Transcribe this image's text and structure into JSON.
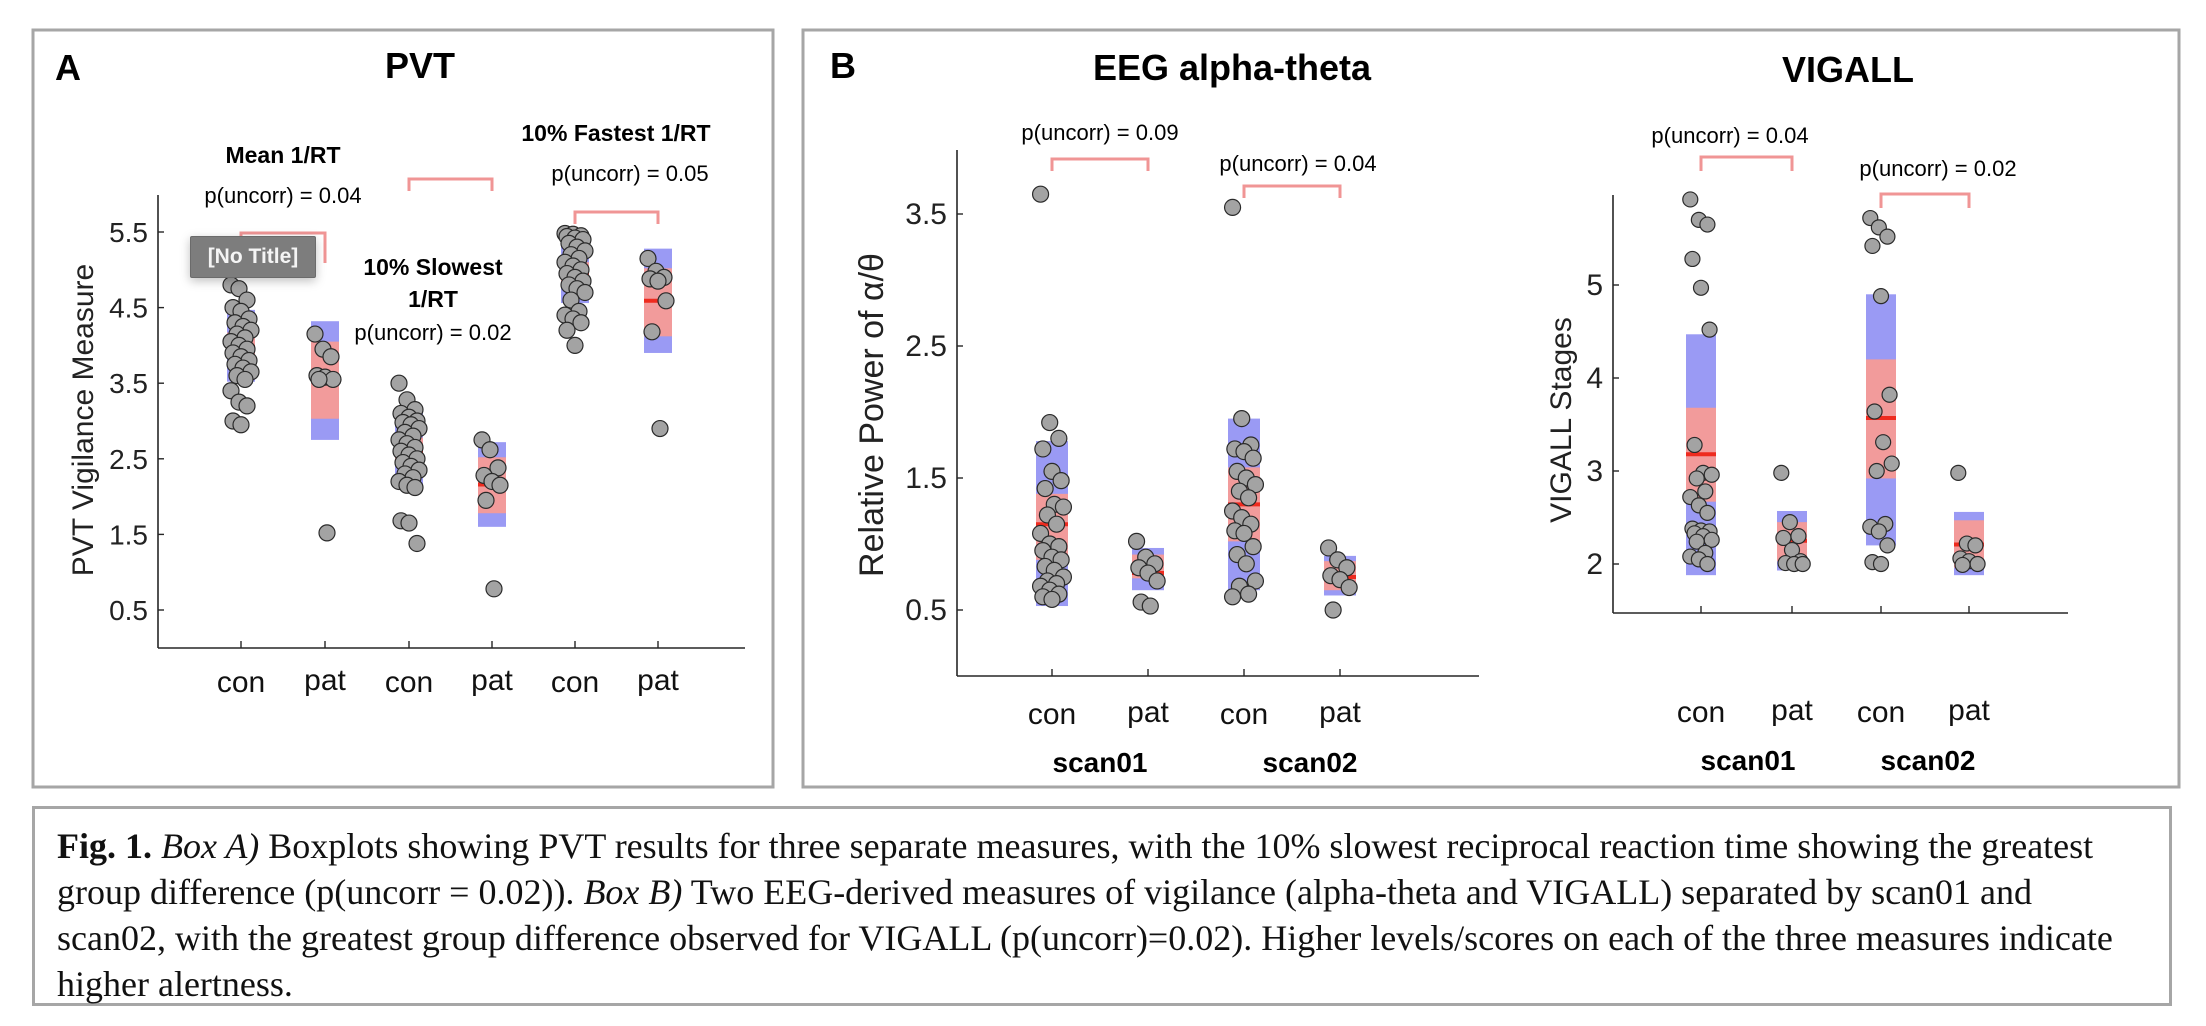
{
  "panel_a": {
    "letter": "A",
    "title": "PVT",
    "ylabel": "PVT Vigilance Measure",
    "tooltip": "[No Title]"
  },
  "panel_b": {
    "letter": "B",
    "scan_labels": [
      "scan01",
      "scan02"
    ]
  },
  "caption": {
    "fig_label": "Fig. 1.",
    "box_a_label": "Box A)",
    "box_a_text": " Boxplots showing PVT results for three separate measures, with the 10% slowest reciprocal reaction time showing the greatest group difference (p(uncorr = 0.02)). ",
    "box_b_label": "Box B)",
    "box_b_text": " Two EEG-derived measures of vigilance (alpha-theta and VIGALL) separated by scan01 and scan02, with the greatest group difference observed for VIGALL (p(uncorr)=0.02). Higher levels/scores on each of the three measures indicate higher alertness."
  },
  "colors": {
    "sd_band": "#9a9af4",
    "ci_band": "#f29b9b",
    "median": "#ee2b1f",
    "point_fill": "#a3a3a3",
    "bracket": "#f09595",
    "frame": "#a6a6a6"
  },
  "chart_data": [
    {
      "id": "pvt",
      "type": "box-scatter",
      "title": "PVT",
      "ylabel": "PVT Vigilance Measure",
      "xlabel": "",
      "ylim": [
        0,
        5.7
      ],
      "yticks": [
        0.5,
        1.5,
        2.5,
        3.5,
        4.5,
        5.5
      ],
      "categories": [
        "con",
        "pat",
        "con",
        "pat",
        "con",
        "pat"
      ],
      "comparisons": [
        {
          "group_label": "Mean 1/RT",
          "p_label": "p(uncorr) = 0.04",
          "pair": [
            0,
            1
          ],
          "bracket_y": 5.6
        },
        {
          "group_label": "10% Slowest\n1/RT",
          "p_label": "p(uncorr) = 0.02",
          "pair": [
            2,
            3
          ],
          "bracket_y": 3.9
        },
        {
          "group_label": "10% Fastest 1/RT",
          "p_label": "p(uncorr) = 0.05",
          "pair": [
            4,
            5
          ],
          "bracket_y": 5.9
        }
      ],
      "groups": [
        {
          "label": "con",
          "band_outer": [
            3.52,
            4.47
          ],
          "band_inner": [
            3.82,
            4.17
          ],
          "median": 3.98,
          "points": [
            4.8,
            4.75,
            4.6,
            4.5,
            4.45,
            4.35,
            4.3,
            4.25,
            4.2,
            4.15,
            4.1,
            4.05,
            4.0,
            3.95,
            3.9,
            3.85,
            3.8,
            3.75,
            3.7,
            3.65,
            3.6,
            3.55,
            3.4,
            3.25,
            3.2,
            3.0,
            2.95
          ]
        },
        {
          "label": "pat",
          "band_outer": [
            2.75,
            4.32
          ],
          "band_inner": [
            3.03,
            4.05
          ],
          "median": 3.55,
          "points": [
            4.15,
            3.95,
            3.85,
            3.6,
            3.58,
            3.55,
            3.55,
            1.52
          ]
        },
        {
          "label": "con",
          "band_outer": [
            2.12,
            3.12
          ],
          "band_inner": [
            2.45,
            2.78
          ],
          "median": 2.6,
          "points": [
            3.5,
            3.28,
            3.15,
            3.1,
            3.05,
            3.0,
            2.98,
            2.95,
            2.9,
            2.85,
            2.8,
            2.75,
            2.7,
            2.65,
            2.6,
            2.55,
            2.5,
            2.45,
            2.4,
            2.35,
            2.3,
            2.25,
            2.2,
            2.15,
            2.12,
            1.68,
            1.65,
            1.38
          ]
        },
        {
          "label": "pat",
          "band_outer": [
            1.6,
            2.72
          ],
          "band_inner": [
            1.78,
            2.52
          ],
          "median": 2.16,
          "points": [
            2.75,
            2.62,
            2.38,
            2.28,
            2.2,
            2.15,
            1.95,
            0.78
          ]
        },
        {
          "label": "con",
          "band_outer": [
            4.56,
            5.38
          ],
          "band_inner": [
            4.82,
            5.1
          ],
          "median": 4.96,
          "points": [
            5.48,
            5.47,
            5.45,
            5.44,
            5.42,
            5.4,
            5.35,
            5.3,
            5.25,
            5.2,
            5.15,
            5.1,
            5.05,
            5.0,
            4.95,
            4.9,
            4.85,
            4.8,
            4.75,
            4.7,
            4.6,
            4.45,
            4.4,
            4.35,
            4.3,
            4.2,
            4.0
          ]
        },
        {
          "label": "pat",
          "band_outer": [
            3.9,
            5.28
          ],
          "band_inner": [
            4.12,
            5.02
          ],
          "median": 4.59,
          "points": [
            5.15,
            4.98,
            4.9,
            4.88,
            4.85,
            4.59,
            4.18,
            2.9
          ]
        }
      ]
    },
    {
      "id": "eeg",
      "type": "box-scatter",
      "title": "EEG alpha-theta",
      "ylabel": "Relative Power of α/θ",
      "xlabel": "",
      "ylim": [
        0,
        4
      ],
      "yticks": [
        0.5,
        1.5,
        2.5,
        3.5
      ],
      "categories": [
        "con",
        "pat",
        "con",
        "pat"
      ],
      "group_labels": [
        "scan01",
        "scan02"
      ],
      "comparisons": [
        {
          "p_label": "p(uncorr) = 0.09",
          "pair": [
            0,
            1
          ],
          "bracket_y": 4.25
        },
        {
          "p_label": "p(uncorr) = 0.04",
          "pair": [
            2,
            3
          ],
          "bracket_y": 4.1
        }
      ],
      "groups": [
        {
          "label": "con",
          "band_outer": [
            0.53,
            1.78
          ],
          "band_inner": [
            0.88,
            1.38
          ],
          "median": 1.15,
          "points": [
            3.65,
            1.92,
            1.8,
            1.72,
            1.55,
            1.48,
            1.42,
            1.3,
            1.28,
            1.22,
            1.15,
            1.08,
            1.0,
            0.98,
            0.95,
            0.9,
            0.88,
            0.83,
            0.8,
            0.75,
            0.72,
            0.7,
            0.68,
            0.65,
            0.62,
            0.6,
            0.58
          ]
        },
        {
          "label": "pat",
          "band_outer": [
            0.65,
            0.97
          ],
          "band_inner": [
            0.74,
            0.92
          ],
          "median": 0.78,
          "points": [
            1.02,
            0.9,
            0.85,
            0.82,
            0.78,
            0.72,
            0.56,
            0.53
          ]
        },
        {
          "label": "con",
          "band_outer": [
            0.65,
            1.95
          ],
          "band_inner": [
            1.02,
            1.58
          ],
          "median": 1.3,
          "points": [
            3.55,
            1.95,
            1.75,
            1.72,
            1.7,
            1.65,
            1.55,
            1.5,
            1.45,
            1.4,
            1.35,
            1.25,
            1.2,
            1.15,
            1.1,
            1.08,
            0.98,
            0.92,
            0.85,
            0.72,
            0.68,
            0.62,
            0.6
          ]
        },
        {
          "label": "pat",
          "band_outer": [
            0.61,
            0.91
          ],
          "band_inner": [
            0.65,
            0.87
          ],
          "median": 0.75,
          "points": [
            0.97,
            0.88,
            0.82,
            0.76,
            0.73,
            0.67,
            0.5
          ]
        }
      ]
    },
    {
      "id": "vigall",
      "type": "box-scatter",
      "title": "VIGALL",
      "ylabel": "VIGALL Stages",
      "xlabel": "",
      "ylim": [
        1.5,
        6
      ],
      "yticks": [
        2,
        3,
        4,
        5
      ],
      "categories": [
        "con",
        "pat",
        "con",
        "pat"
      ],
      "group_labels": [
        "scan01",
        "scan02"
      ],
      "comparisons": [
        {
          "p_label": "p(uncorr) = 0.04",
          "pair": [
            0,
            1
          ],
          "bracket_y": 6.3
        },
        {
          "p_label": "p(uncorr) = 0.02",
          "pair": [
            2,
            3
          ],
          "bracket_y": 6.0
        }
      ],
      "groups": [
        {
          "label": "con",
          "band_outer": [
            1.88,
            4.47
          ],
          "band_inner": [
            2.67,
            3.68
          ],
          "median": 3.18,
          "points": [
            5.92,
            5.7,
            5.65,
            5.28,
            4.97,
            4.52,
            3.28,
            2.98,
            2.96,
            2.92,
            2.78,
            2.72,
            2.63,
            2.55,
            2.38,
            2.36,
            2.35,
            2.33,
            2.3,
            2.26,
            2.24,
            2.12,
            2.08,
            2.05,
            2.0
          ]
        },
        {
          "label": "pat",
          "band_outer": [
            1.93,
            2.57
          ],
          "band_inner": [
            2.03,
            2.45
          ],
          "median": 2.25,
          "points": [
            2.98,
            2.45,
            2.3,
            2.28,
            2.15,
            2.03,
            2.01,
            2.0,
            2.0
          ]
        },
        {
          "label": "con",
          "band_outer": [
            2.2,
            4.9
          ],
          "band_inner": [
            2.92,
            4.2
          ],
          "median": 3.57,
          "points": [
            5.72,
            5.62,
            5.52,
            5.42,
            4.88,
            3.82,
            3.64,
            3.31,
            3.08,
            3.0,
            2.43,
            2.4,
            2.35,
            2.2,
            2.02,
            2.0
          ]
        },
        {
          "label": "pat",
          "band_outer": [
            1.88,
            2.56
          ],
          "band_inner": [
            1.96,
            2.47
          ],
          "median": 2.21,
          "points": [
            2.98,
            2.22,
            2.2,
            2.06,
            2.03,
            2.0,
            1.99
          ]
        }
      ]
    }
  ]
}
